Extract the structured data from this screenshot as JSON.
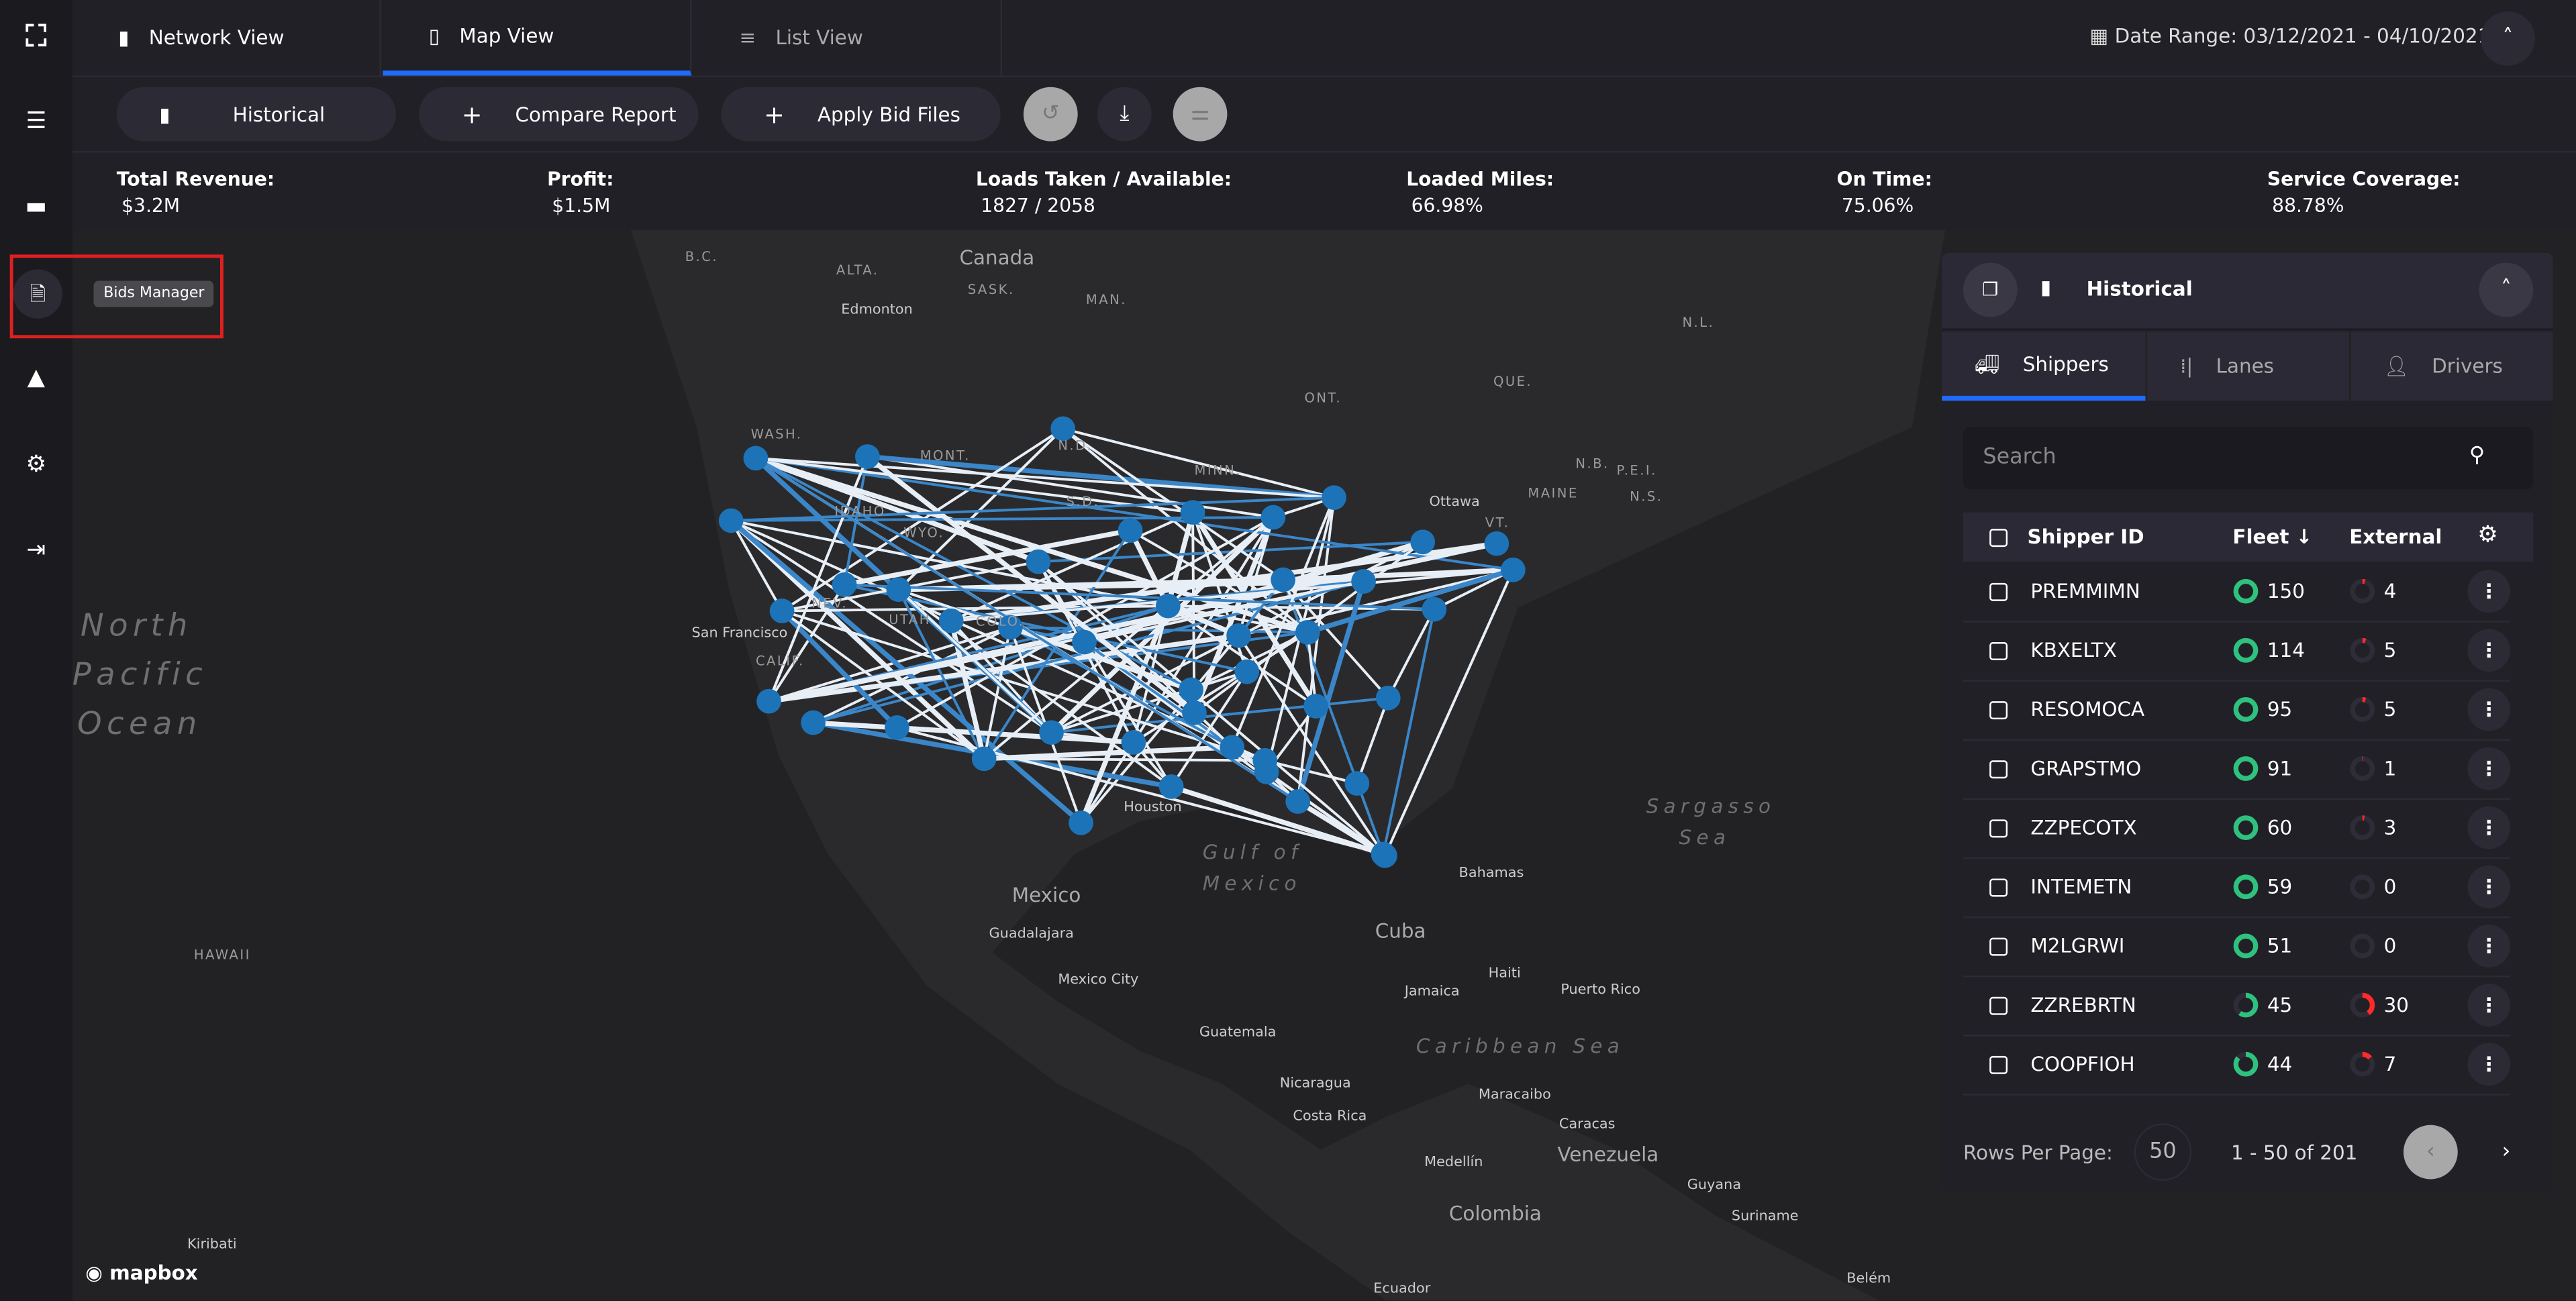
{
  "rail": {
    "items": [
      "logo-icon",
      "menu-icon",
      "folder-icon",
      "bids-manager-icon",
      "alert-triangle-icon",
      "gear-icon",
      "logout-icon"
    ],
    "tooltip": "Bids Manager"
  },
  "tabs": [
    {
      "label": "Network View",
      "icon": "folder-icon"
    },
    {
      "label": "Map View",
      "icon": "map-icon",
      "active": true
    },
    {
      "label": "List View",
      "icon": "list-icon"
    }
  ],
  "date_range": "Date Range: 03/12/2021 - 04/10/2021",
  "toolbar": {
    "historical": "Historical",
    "compare": "Compare Report",
    "apply": "Apply Bid Files"
  },
  "stats": [
    {
      "label": "Total Revenue:",
      "value": "$3.2M"
    },
    {
      "label": "Profit:",
      "value": "$1.5M"
    },
    {
      "label": "Loads Taken / Available:",
      "value": "1827 / 2058"
    },
    {
      "label": "Loaded Miles:",
      "value": "66.98%"
    },
    {
      "label": "On Time:",
      "value": "75.06%"
    },
    {
      "label": "Service Coverage:",
      "value": "88.78%"
    }
  ],
  "map": {
    "labels": [
      "Canada",
      "ALTA.",
      "SASK.",
      "MAN.",
      "Edmonton",
      "B.C.",
      "ONT.",
      "QUE.",
      "N.B.",
      "P.E.I.",
      "N.S.",
      "N.L.",
      "Ottawa",
      "MAINE",
      "VT.",
      "WASH.",
      "MONT.",
      "N.D.",
      "MINN.",
      "IDAHO",
      "WYO.",
      "S.D.",
      "NEV.",
      "UTAH",
      "COLO.",
      "CALIF.",
      "San Francisco",
      "Houston",
      "Mexico",
      "Guadalajara",
      "Mexico City",
      "Cuba",
      "Bahamas",
      "Haiti",
      "Jamaica",
      "Puerto Rico",
      "Guatemala",
      "Nicaragua",
      "Costa Rica",
      "Maracaibo",
      "Caracas",
      "Venezuela",
      "Medellín",
      "Colombia",
      "Guyana",
      "Suriname",
      "Ecuador",
      "Belém",
      "Kiribati",
      "HAWAII"
    ],
    "oceans": [
      "North",
      "Pacific",
      "Ocean",
      "Gulf of",
      "Mexico",
      "Sargasso",
      "Sea",
      "Caribbean Sea"
    ],
    "attribution": "mapbox"
  },
  "panel": {
    "title": "Historical",
    "tabs": [
      "Shippers",
      "Lanes",
      "Drivers"
    ],
    "search_placeholder": "Search",
    "columns": {
      "id": "Shipper ID",
      "fleet": "Fleet ↓",
      "external": "External"
    },
    "rows": [
      {
        "id": "PREMMIMN",
        "fleet": "150",
        "fleet_pct": 100,
        "external": "4",
        "external_pct": 4
      },
      {
        "id": "KBXELTX",
        "fleet": "114",
        "fleet_pct": 100,
        "external": "5",
        "external_pct": 5
      },
      {
        "id": "RESOMOCA",
        "fleet": "95",
        "fleet_pct": 100,
        "external": "5",
        "external_pct": 5
      },
      {
        "id": "GRAPSTMO",
        "fleet": "91",
        "fleet_pct": 100,
        "external": "1",
        "external_pct": 1
      },
      {
        "id": "ZZPECOTX",
        "fleet": "60",
        "fleet_pct": 100,
        "external": "3",
        "external_pct": 3
      },
      {
        "id": "INTEMETN",
        "fleet": "59",
        "fleet_pct": 100,
        "external": "0",
        "external_pct": 0
      },
      {
        "id": "M2LGRWI",
        "fleet": "51",
        "fleet_pct": 100,
        "external": "0",
        "external_pct": 0
      },
      {
        "id": "ZZREBRTN",
        "fleet": "45",
        "fleet_pct": 60,
        "external": "30",
        "external_pct": 40
      },
      {
        "id": "COOPFIOH",
        "fleet": "44",
        "fleet_pct": 86,
        "external": "7",
        "external_pct": 14
      }
    ],
    "rows_per_page_label": "Rows Per Page:",
    "rows_per_page": "50",
    "range": "1 - 50 of 201"
  },
  "colors": {
    "accent": "#1f6bff",
    "node": "#1d73b8",
    "fleet": "#2ec27e",
    "external": "#ff2a2a"
  }
}
